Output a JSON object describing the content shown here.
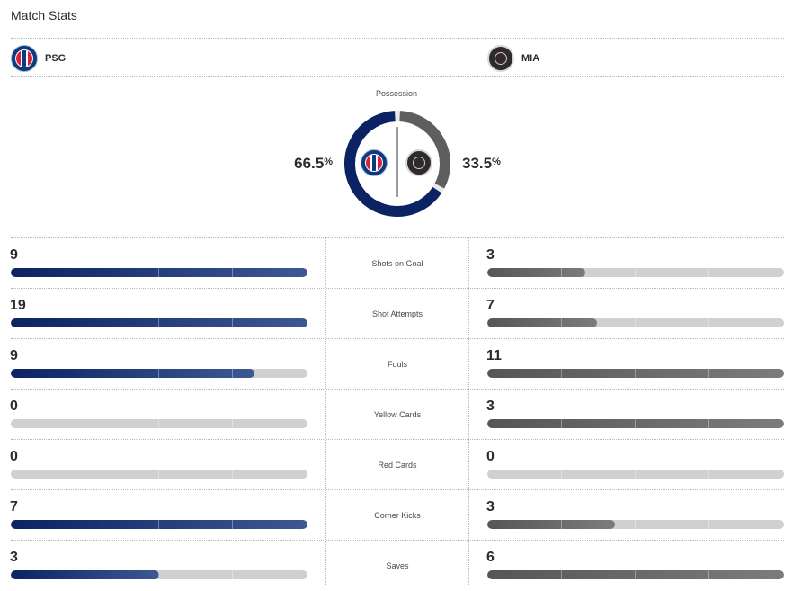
{
  "header": {
    "title": "Match Stats"
  },
  "teams": {
    "home": {
      "abbr": "PSG",
      "logo_icon": "psg-crest-icon",
      "color": "#0b2363"
    },
    "away": {
      "abbr": "MIA",
      "logo_icon": "inter-miami-crest-icon",
      "color": "#5a5a5a"
    }
  },
  "possession": {
    "label": "Possession",
    "home_value": "66.5",
    "away_value": "33.5",
    "unit": "%",
    "home_fraction": 0.665,
    "away_fraction": 0.335
  },
  "stats": [
    {
      "label": "Shots on Goal",
      "home": "9",
      "away": "3",
      "home_fill": 1.0,
      "away_fill": 0.33
    },
    {
      "label": "Shot Attempts",
      "home": "19",
      "away": "7",
      "home_fill": 1.0,
      "away_fill": 0.37
    },
    {
      "label": "Fouls",
      "home": "9",
      "away": "11",
      "home_fill": 0.82,
      "away_fill": 1.0
    },
    {
      "label": "Yellow Cards",
      "home": "0",
      "away": "3",
      "home_fill": 0,
      "away_fill": 1.0
    },
    {
      "label": "Red Cards",
      "home": "0",
      "away": "0",
      "home_fill": 0,
      "away_fill": 0
    },
    {
      "label": "Corner Kicks",
      "home": "7",
      "away": "3",
      "home_fill": 1.0,
      "away_fill": 0.43
    },
    {
      "label": "Saves",
      "home": "3",
      "away": "6",
      "home_fill": 0.5,
      "away_fill": 1.0
    }
  ]
}
